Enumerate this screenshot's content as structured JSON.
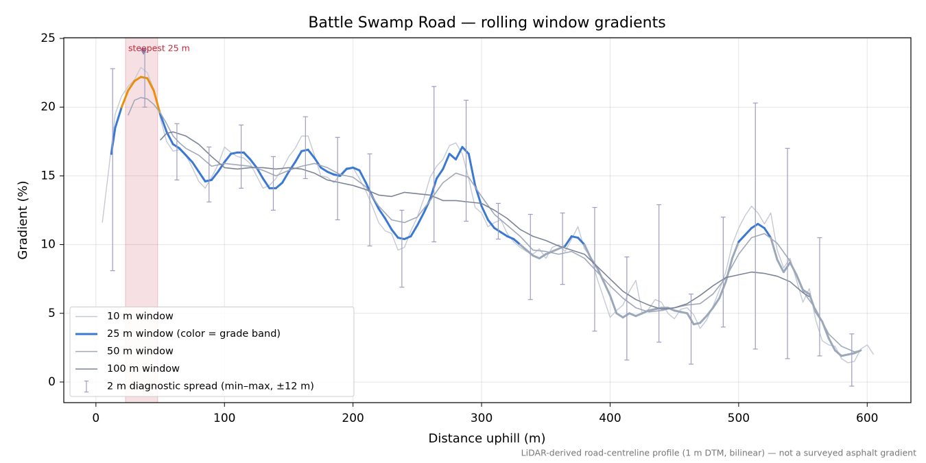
{
  "chart_data": {
    "type": "line",
    "title": "Battle Swamp Road — rolling window gradients",
    "xlabel": "Distance uphill (m)",
    "ylabel": "Gradient (%)",
    "footnote": "LiDAR-derived road-centreline profile (1 m DTM, bilinear) — not a surveyed asphalt gradient",
    "xlim": [
      -25,
      634
    ],
    "ylim": [
      -1.5,
      25.05
    ],
    "xticks": [
      0,
      100,
      200,
      300,
      400,
      500,
      600
    ],
    "yticks": [
      0,
      5,
      10,
      15,
      20,
      25
    ],
    "grid": true,
    "legend": "lower left",
    "highlight": {
      "x": [
        23,
        48
      ],
      "color": "#d9737f",
      "label": "steepest 25 m",
      "label_color": "#c0283a",
      "peak": {
        "x": 37,
        "y": 24
      }
    },
    "series": [
      {
        "name": "10 m window",
        "color": "#c4c9d4",
        "width": 1.4,
        "x": [
          5,
          10,
          15,
          20,
          25,
          30,
          35,
          40,
          45,
          50,
          55,
          60,
          65,
          70,
          75,
          80,
          85,
          90,
          95,
          100,
          105,
          110,
          115,
          120,
          125,
          130,
          135,
          140,
          145,
          150,
          155,
          160,
          165,
          170,
          175,
          180,
          185,
          190,
          195,
          200,
          205,
          210,
          215,
          220,
          225,
          230,
          235,
          240,
          245,
          250,
          255,
          260,
          265,
          270,
          275,
          280,
          285,
          290,
          295,
          300,
          305,
          310,
          315,
          320,
          325,
          330,
          335,
          340,
          345,
          350,
          355,
          360,
          365,
          370,
          375,
          380,
          385,
          390,
          395,
          400,
          405,
          410,
          415,
          420,
          425,
          430,
          435,
          440,
          445,
          450,
          455,
          460,
          465,
          470,
          475,
          480,
          485,
          490,
          495,
          500,
          505,
          510,
          515,
          520,
          525,
          530,
          535,
          540,
          545,
          550,
          555,
          560,
          565,
          570,
          575,
          580,
          585,
          590,
          595,
          600,
          605
        ],
        "values": [
          11.6,
          15.5,
          19.5,
          20.8,
          21.5,
          22.0,
          22.9,
          22.5,
          21.3,
          19.2,
          17.5,
          16.8,
          16.9,
          16.5,
          15.6,
          14.6,
          14.1,
          14.9,
          15.8,
          17.1,
          16.7,
          16.4,
          16.3,
          15.9,
          15.0,
          14.1,
          14.3,
          14.8,
          15.5,
          16.4,
          17.0,
          17.9,
          17.9,
          16.5,
          15.0,
          14.9,
          14.5,
          15.1,
          15.6,
          15.6,
          14.8,
          13.9,
          12.8,
          11.6,
          11.0,
          10.8,
          9.6,
          9.8,
          11.0,
          12.0,
          13.3,
          14.9,
          15.7,
          16.2,
          17.2,
          17.4,
          16.6,
          14.8,
          12.7,
          12.3,
          11.3,
          11.6,
          11.8,
          10.8,
          10.2,
          9.8,
          9.5,
          9.3,
          9.7,
          9.0,
          9.8,
          10.0,
          9.5,
          10.4,
          11.3,
          9.7,
          9.1,
          7.5,
          6.1,
          4.7,
          5.2,
          5.6,
          6.6,
          7.4,
          5.0,
          5.3,
          6.0,
          5.8,
          5.0,
          4.6,
          5.3,
          5.4,
          4.9,
          3.9,
          4.5,
          5.5,
          6.7,
          8.0,
          10.0,
          11.2,
          12.1,
          12.8,
          12.3,
          11.5,
          12.3,
          9.6,
          8.3,
          9.0,
          7.4,
          5.8,
          6.8,
          4.5,
          3.0,
          2.7,
          2.6,
          1.7,
          1.4,
          1.5,
          2.4,
          2.7,
          2.0
        ]
      },
      {
        "name": "25 m window (color = grade band)",
        "color": "#3a78d4",
        "width": 3,
        "bands": [
          {
            "min": 20,
            "color": "#e8900c"
          },
          {
            "min": 10,
            "color": "#3a78d4"
          }
        ],
        "band_below_color": "#9aa8ba",
        "x": [
          12,
          15,
          20,
          25,
          30,
          35,
          40,
          45,
          50,
          55,
          60,
          65,
          70,
          75,
          80,
          85,
          90,
          95,
          100,
          105,
          110,
          115,
          120,
          125,
          130,
          135,
          140,
          145,
          150,
          155,
          160,
          165,
          170,
          175,
          180,
          185,
          190,
          195,
          200,
          205,
          210,
          215,
          220,
          225,
          230,
          235,
          240,
          245,
          250,
          255,
          260,
          265,
          270,
          275,
          280,
          285,
          290,
          295,
          300,
          305,
          310,
          315,
          320,
          325,
          330,
          335,
          340,
          345,
          350,
          355,
          360,
          365,
          370,
          375,
          380,
          385,
          390,
          395,
          400,
          405,
          410,
          415,
          420,
          425,
          430,
          435,
          440,
          445,
          450,
          455,
          460,
          465,
          470,
          475,
          480,
          485,
          490,
          495,
          500,
          505,
          510,
          515,
          520,
          525,
          530,
          535,
          540,
          545,
          550,
          555,
          560,
          565,
          570,
          575,
          580,
          585,
          590,
          595
        ],
        "values": [
          16.6,
          18.5,
          20.0,
          21.2,
          21.9,
          22.2,
          22.1,
          21.2,
          19.5,
          18.2,
          17.3,
          17.0,
          16.5,
          16.0,
          15.3,
          14.6,
          14.7,
          15.3,
          16.0,
          16.6,
          16.7,
          16.7,
          16.2,
          15.6,
          14.8,
          14.1,
          14.1,
          14.5,
          15.3,
          16.0,
          16.8,
          16.9,
          16.3,
          15.6,
          15.3,
          15.1,
          15.0,
          15.5,
          15.6,
          15.4,
          14.5,
          13.5,
          12.6,
          11.9,
          11.1,
          10.5,
          10.4,
          10.6,
          11.4,
          12.3,
          13.3,
          14.8,
          15.5,
          16.6,
          16.2,
          17.1,
          16.6,
          14.3,
          12.8,
          11.8,
          11.2,
          10.9,
          10.6,
          10.4,
          10.0,
          9.6,
          9.2,
          9.0,
          9.3,
          9.5,
          9.7,
          9.9,
          10.6,
          10.5,
          10.0,
          9.0,
          8.3,
          7.3,
          6.3,
          5.0,
          4.7,
          5.0,
          4.8,
          5.0,
          5.2,
          5.3,
          5.4,
          5.4,
          5.2,
          5.1,
          5.0,
          4.2,
          4.3,
          4.8,
          5.4,
          6.1,
          7.3,
          9.0,
          10.2,
          10.7,
          11.2,
          11.5,
          11.2,
          10.5,
          8.9,
          8.0,
          8.7,
          7.8,
          6.7,
          6.4,
          5.1,
          4.4,
          3.2,
          2.3,
          1.9,
          2.0,
          2.1,
          2.3
        ]
      },
      {
        "name": "50 m window",
        "color": "#a0a8b8",
        "width": 1.6,
        "x": [
          25,
          30,
          35,
          40,
          45,
          50,
          55,
          60,
          65,
          70,
          80,
          90,
          100,
          110,
          120,
          130,
          140,
          150,
          160,
          170,
          180,
          190,
          200,
          210,
          220,
          230,
          240,
          250,
          260,
          270,
          280,
          290,
          300,
          310,
          320,
          330,
          340,
          350,
          360,
          370,
          380,
          390,
          400,
          410,
          420,
          430,
          440,
          450,
          460,
          470,
          480,
          490,
          500,
          510,
          520,
          530,
          540,
          550,
          560,
          570,
          580,
          590,
          595
        ],
        "values": [
          19.4,
          20.5,
          20.7,
          20.6,
          20.2,
          19.6,
          18.8,
          17.9,
          17.4,
          17.0,
          16.5,
          15.7,
          15.9,
          15.8,
          15.7,
          15.4,
          15.0,
          15.4,
          15.7,
          15.9,
          15.6,
          15.1,
          14.9,
          14.2,
          12.8,
          11.8,
          11.6,
          12.0,
          13.2,
          14.5,
          15.2,
          14.9,
          13.5,
          12.2,
          11.4,
          10.6,
          9.6,
          9.5,
          9.3,
          9.5,
          9.0,
          8.0,
          7.0,
          6.1,
          5.4,
          5.1,
          5.2,
          5.4,
          5.6,
          5.7,
          6.4,
          7.6,
          9.3,
          10.5,
          10.8,
          10.1,
          8.8,
          6.6,
          5.3,
          3.5,
          2.6,
          2.2,
          2.3
        ]
      },
      {
        "name": "100 m window",
        "color": "#7a8496",
        "width": 1.6,
        "x": [
          50,
          55,
          60,
          70,
          80,
          90,
          100,
          110,
          120,
          130,
          140,
          150,
          160,
          170,
          180,
          190,
          200,
          210,
          220,
          230,
          240,
          250,
          260,
          270,
          280,
          290,
          300,
          310,
          320,
          330,
          340,
          350,
          360,
          370,
          380,
          390,
          400,
          410,
          420,
          430,
          440,
          450,
          460,
          470,
          480,
          490,
          500,
          510,
          520,
          530,
          540,
          550,
          555
        ],
        "values": [
          17.6,
          18.1,
          18.2,
          17.9,
          17.3,
          16.4,
          15.6,
          15.5,
          15.6,
          15.6,
          15.5,
          15.6,
          15.5,
          15.2,
          14.7,
          14.5,
          14.3,
          14.0,
          13.6,
          13.5,
          13.8,
          13.7,
          13.6,
          13.2,
          13.2,
          13.1,
          13.0,
          12.5,
          11.9,
          11.1,
          10.6,
          10.3,
          9.9,
          9.6,
          9.3,
          8.4,
          7.5,
          6.6,
          6.0,
          5.6,
          5.3,
          5.4,
          5.7,
          6.3,
          7.0,
          7.6,
          7.8,
          8.0,
          7.9,
          7.7,
          7.3,
          6.5,
          6.2
        ]
      }
    ],
    "spread": {
      "name": "2 m diagnostic spread (min–max, ±12 m)",
      "color": "#9c9cc0",
      "x": [
        13,
        38,
        63,
        88,
        113,
        138,
        163,
        188,
        213,
        238,
        263,
        288,
        313,
        338,
        363,
        388,
        413,
        438,
        463,
        488,
        513,
        538,
        563,
        588
      ],
      "low": [
        8.1,
        20.0,
        14.7,
        13.1,
        14.1,
        12.5,
        14.8,
        11.8,
        9.9,
        6.9,
        10.2,
        11.7,
        10.4,
        6.0,
        7.1,
        3.7,
        1.6,
        2.9,
        1.3,
        4.0,
        2.4,
        1.7,
        1.9,
        -0.3
      ],
      "high": [
        22.8,
        24.0,
        18.8,
        17.1,
        18.7,
        16.4,
        19.3,
        17.8,
        16.6,
        12.5,
        21.5,
        20.5,
        13.0,
        12.2,
        12.3,
        12.7,
        9.1,
        12.9,
        6.4,
        12.0,
        20.3,
        17.0,
        10.5,
        3.5
      ]
    }
  }
}
